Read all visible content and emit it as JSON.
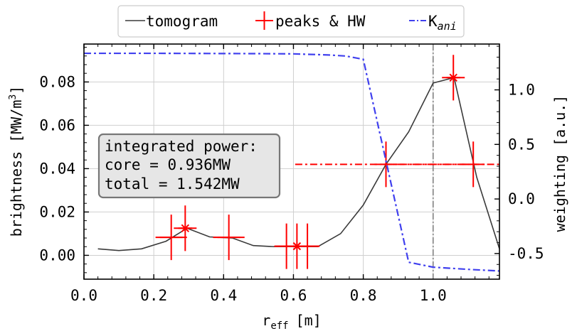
{
  "chart_data": {
    "type": "line",
    "xlabel": "r",
    "xlabel_sub": "eff",
    "xlabel_unit": "[m]",
    "ylabel": "brightness [MW/m",
    "ylabel_sup": "3",
    "ylabel_end": "]",
    "y2label": "weighting [a.u.]",
    "xlim": [
      0.0,
      1.19
    ],
    "ylim": [
      -0.011,
      0.0975
    ],
    "y2lim": [
      -0.735,
      1.42
    ],
    "x_ticks": [
      "0.0",
      "0.2",
      "0.4",
      "0.6",
      "0.8",
      "1.0"
    ],
    "y_ticks": [
      "0.00",
      "0.02",
      "0.04",
      "0.06",
      "0.08"
    ],
    "y2_ticks": [
      "-0.5",
      "0.0",
      "0.5",
      "1.0"
    ],
    "grid": true,
    "vline_x": 1.0,
    "legend": {
      "position": "top-center",
      "entries": [
        {
          "label": "tomogram",
          "style": "line",
          "color": "#3a3a3a"
        },
        {
          "label": "peaks & HW",
          "style": "errorbar",
          "color": "#ff0000"
        },
        {
          "label": "K",
          "label_sub": "ani",
          "style": "dashdot",
          "color": "#4040ee"
        }
      ]
    },
    "series": [
      {
        "name": "tomogram",
        "axis": "left",
        "color": "#3a3a3a",
        "x": [
          0.04,
          0.1,
          0.165,
          0.235,
          0.295,
          0.36,
          0.425,
          0.485,
          0.545,
          0.605,
          0.67,
          0.735,
          0.8,
          0.865,
          0.93,
          1.0,
          1.06,
          1.125,
          1.19
        ],
        "y": [
          0.003,
          0.0022,
          0.003,
          0.0065,
          0.0125,
          0.0085,
          0.008,
          0.0045,
          0.004,
          0.004,
          0.004,
          0.01,
          0.0232,
          0.042,
          0.057,
          0.0795,
          0.082,
          0.036,
          0.003
        ]
      },
      {
        "name": "peaks & HW",
        "axis": "left",
        "color": "#ff0000",
        "points": [
          {
            "x": 0.29,
            "y": 0.0125,
            "xerr": 0.02,
            "yerr": 0.0105
          },
          {
            "x": 0.25,
            "y": 0.0083,
            "xerr": 0.045,
            "yerr": 0.0105
          },
          {
            "x": 0.415,
            "y": 0.0083,
            "xerr": 0.045,
            "yerr": 0.0105
          },
          {
            "x": 0.61,
            "y": 0.0042,
            "xerr": 0.035,
            "yerr": 0.0105
          },
          {
            "x": 0.58,
            "y": 0.0042,
            "xerr": 0.035,
            "yerr": 0.0105
          },
          {
            "x": 0.64,
            "y": 0.0042,
            "xerr": 0.035,
            "yerr": 0.0105
          },
          {
            "x": 0.865,
            "y": 0.042,
            "xerr": 0.26,
            "yerr": 0.0105
          },
          {
            "x": 1.115,
            "y": 0.042,
            "xerr": 0.26,
            "yerr": 0.0105
          },
          {
            "x": 1.058,
            "y": 0.082,
            "xerr": 0.02,
            "yerr": 0.0105
          }
        ],
        "markers": [
          {
            "x": 0.29,
            "y": 0.0125
          },
          {
            "x": 0.61,
            "y": 0.0042
          },
          {
            "x": 1.058,
            "y": 0.082
          }
        ]
      },
      {
        "name": "K_ani",
        "axis": "right",
        "color": "#4040ee",
        "x": [
          0.0,
          0.1,
          0.2,
          0.3,
          0.4,
          0.5,
          0.6,
          0.7,
          0.75,
          0.8,
          0.865,
          0.93,
          1.0,
          1.1,
          1.19
        ],
        "y": [
          1.335,
          1.335,
          1.335,
          1.334,
          1.333,
          1.332,
          1.33,
          1.32,
          1.31,
          1.28,
          0.35,
          -0.58,
          -0.625,
          -0.645,
          -0.66
        ]
      }
    ],
    "annotation": {
      "lines": [
        "integrated power:",
        "core = 0.936MW",
        "total = 1.542MW"
      ]
    }
  }
}
